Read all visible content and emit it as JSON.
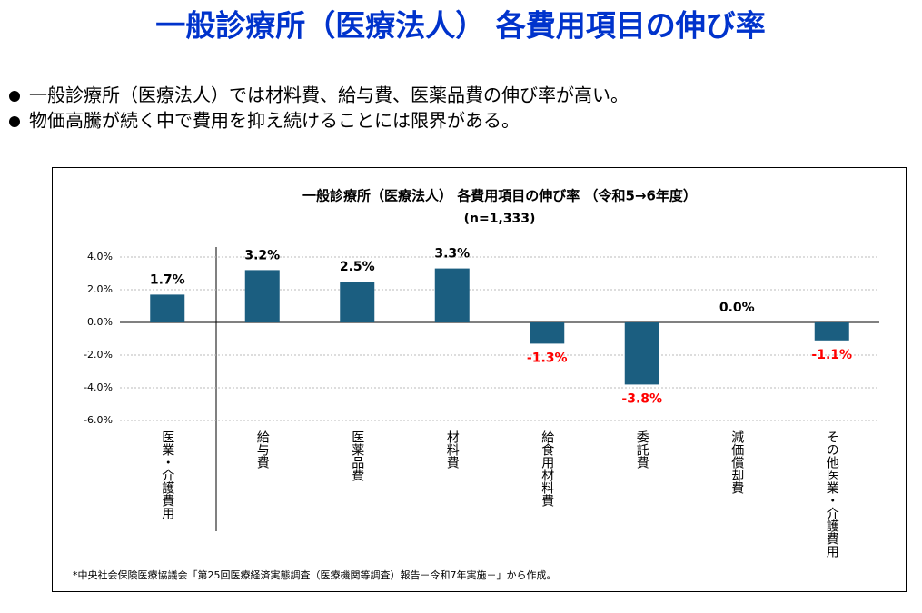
{
  "title": "一般診療所（医療法人） 各費用項目の伸び率",
  "bullets": [
    "一般診療所（医療法人）では材料費、給与費、医薬品費の伸び率が高い。",
    "物価高騰が続く中で費用を抑え続けることには限界がある。"
  ],
  "footnote": "*中央社会保険医療協議会「第25回医療経済実態調査（医療機関等調査）報告－令和7年実施－」から作成。",
  "chart_data": {
    "type": "bar",
    "title": "一般診療所（医療法人） 各費用項目の伸び率 （令和5→6年度）",
    "subtitle": "(n=1,333)",
    "categories": [
      "医業・介護費用",
      "給与費",
      "医薬品費",
      "材料費",
      "給食用材料費",
      "委託費",
      "減価償却費",
      "その他医業・介護費用"
    ],
    "values": [
      1.7,
      3.2,
      2.5,
      3.3,
      -1.3,
      -3.8,
      0.0,
      -1.1
    ],
    "value_labels": [
      "1.7%",
      "3.2%",
      "2.5%",
      "3.3%",
      "-1.3%",
      "-3.8%",
      "0.0%",
      "-1.1%"
    ],
    "color": "#1b5e80",
    "negative_label_color": "#ff0000",
    "ylim": [
      -6,
      4
    ],
    "yticks": [
      {
        "value": 4,
        "label": "4.0%"
      },
      {
        "value": 2,
        "label": "2.0%"
      },
      {
        "value": 0,
        "label": "0.0%"
      },
      {
        "value": -2,
        "label": "-2.0%"
      },
      {
        "value": -4,
        "label": "-4.0%"
      },
      {
        "value": -6,
        "label": "-6.0%"
      }
    ],
    "grid": true
  }
}
